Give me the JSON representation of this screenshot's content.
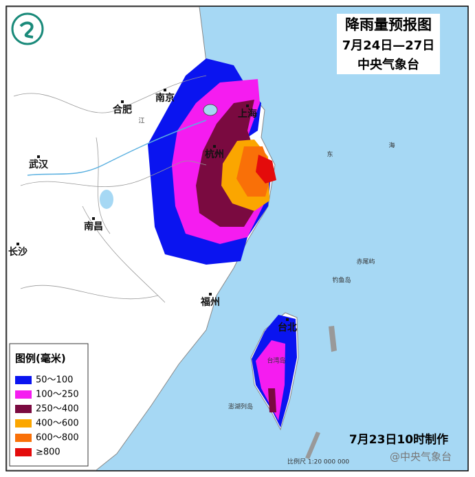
{
  "header": {
    "title": "降雨量预报图",
    "period": "7月24日—27日",
    "agency": "中央气象台"
  },
  "cities": [
    {
      "label": "南京"
    },
    {
      "label": "合肥"
    },
    {
      "label": "上海"
    },
    {
      "label": "杭州"
    },
    {
      "label": "武汉"
    },
    {
      "label": "南昌"
    },
    {
      "label": "长沙"
    },
    {
      "label": "福州"
    },
    {
      "label": "台北"
    }
  ],
  "places": [
    {
      "label": "江"
    },
    {
      "label": "东"
    },
    {
      "label": "海"
    },
    {
      "label": "赤尾屿"
    },
    {
      "label": "钓鱼岛"
    },
    {
      "label": "台湾岛"
    },
    {
      "label": "澎湖列岛"
    }
  ],
  "legend": {
    "title": "图例(毫米)",
    "items": [
      {
        "label": "50～100",
        "color": "#0a14f0"
      },
      {
        "label": "100～250",
        "color": "#f51cf0"
      },
      {
        "label": "250～400",
        "color": "#7a0a40"
      },
      {
        "label": "400～600",
        "color": "#fba600"
      },
      {
        "label": "600～800",
        "color": "#f97008"
      },
      {
        "label": "≥800",
        "color": "#e40b0b"
      }
    ]
  },
  "footer": {
    "made": "7月23日10时制作",
    "scale": "比例尺 1:20 000 000",
    "watermark": "@中央气象台"
  }
}
